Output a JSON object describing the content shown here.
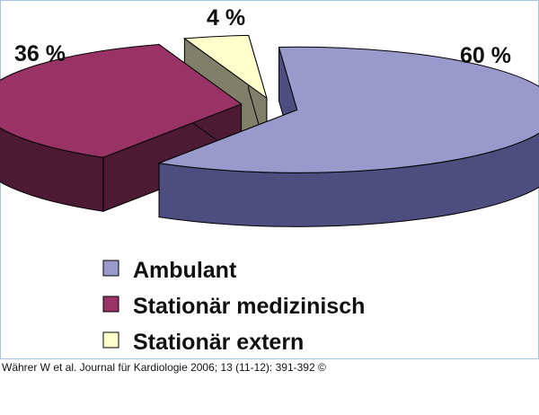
{
  "chart_data": {
    "type": "pie",
    "style": "3d-exploded",
    "title": "",
    "slices": [
      {
        "label": "Ambulant",
        "value": 60,
        "display": "60 %",
        "color_top": "#9999cc",
        "color_side": "#4d4d80"
      },
      {
        "label": "Stationär medizinisch",
        "value": 36,
        "display": "36 %",
        "color_top": "#993366",
        "color_side": "#4d1a33"
      },
      {
        "label": "Stationär extern",
        "value": 4,
        "display": "4 %",
        "color_top": "#ffffcc",
        "color_side": "#80806a"
      }
    ],
    "legend_position": "bottom"
  },
  "citation": "Währer W et al. Journal für Kardiologie 2006; 13 (11-12): 391-392 ©"
}
